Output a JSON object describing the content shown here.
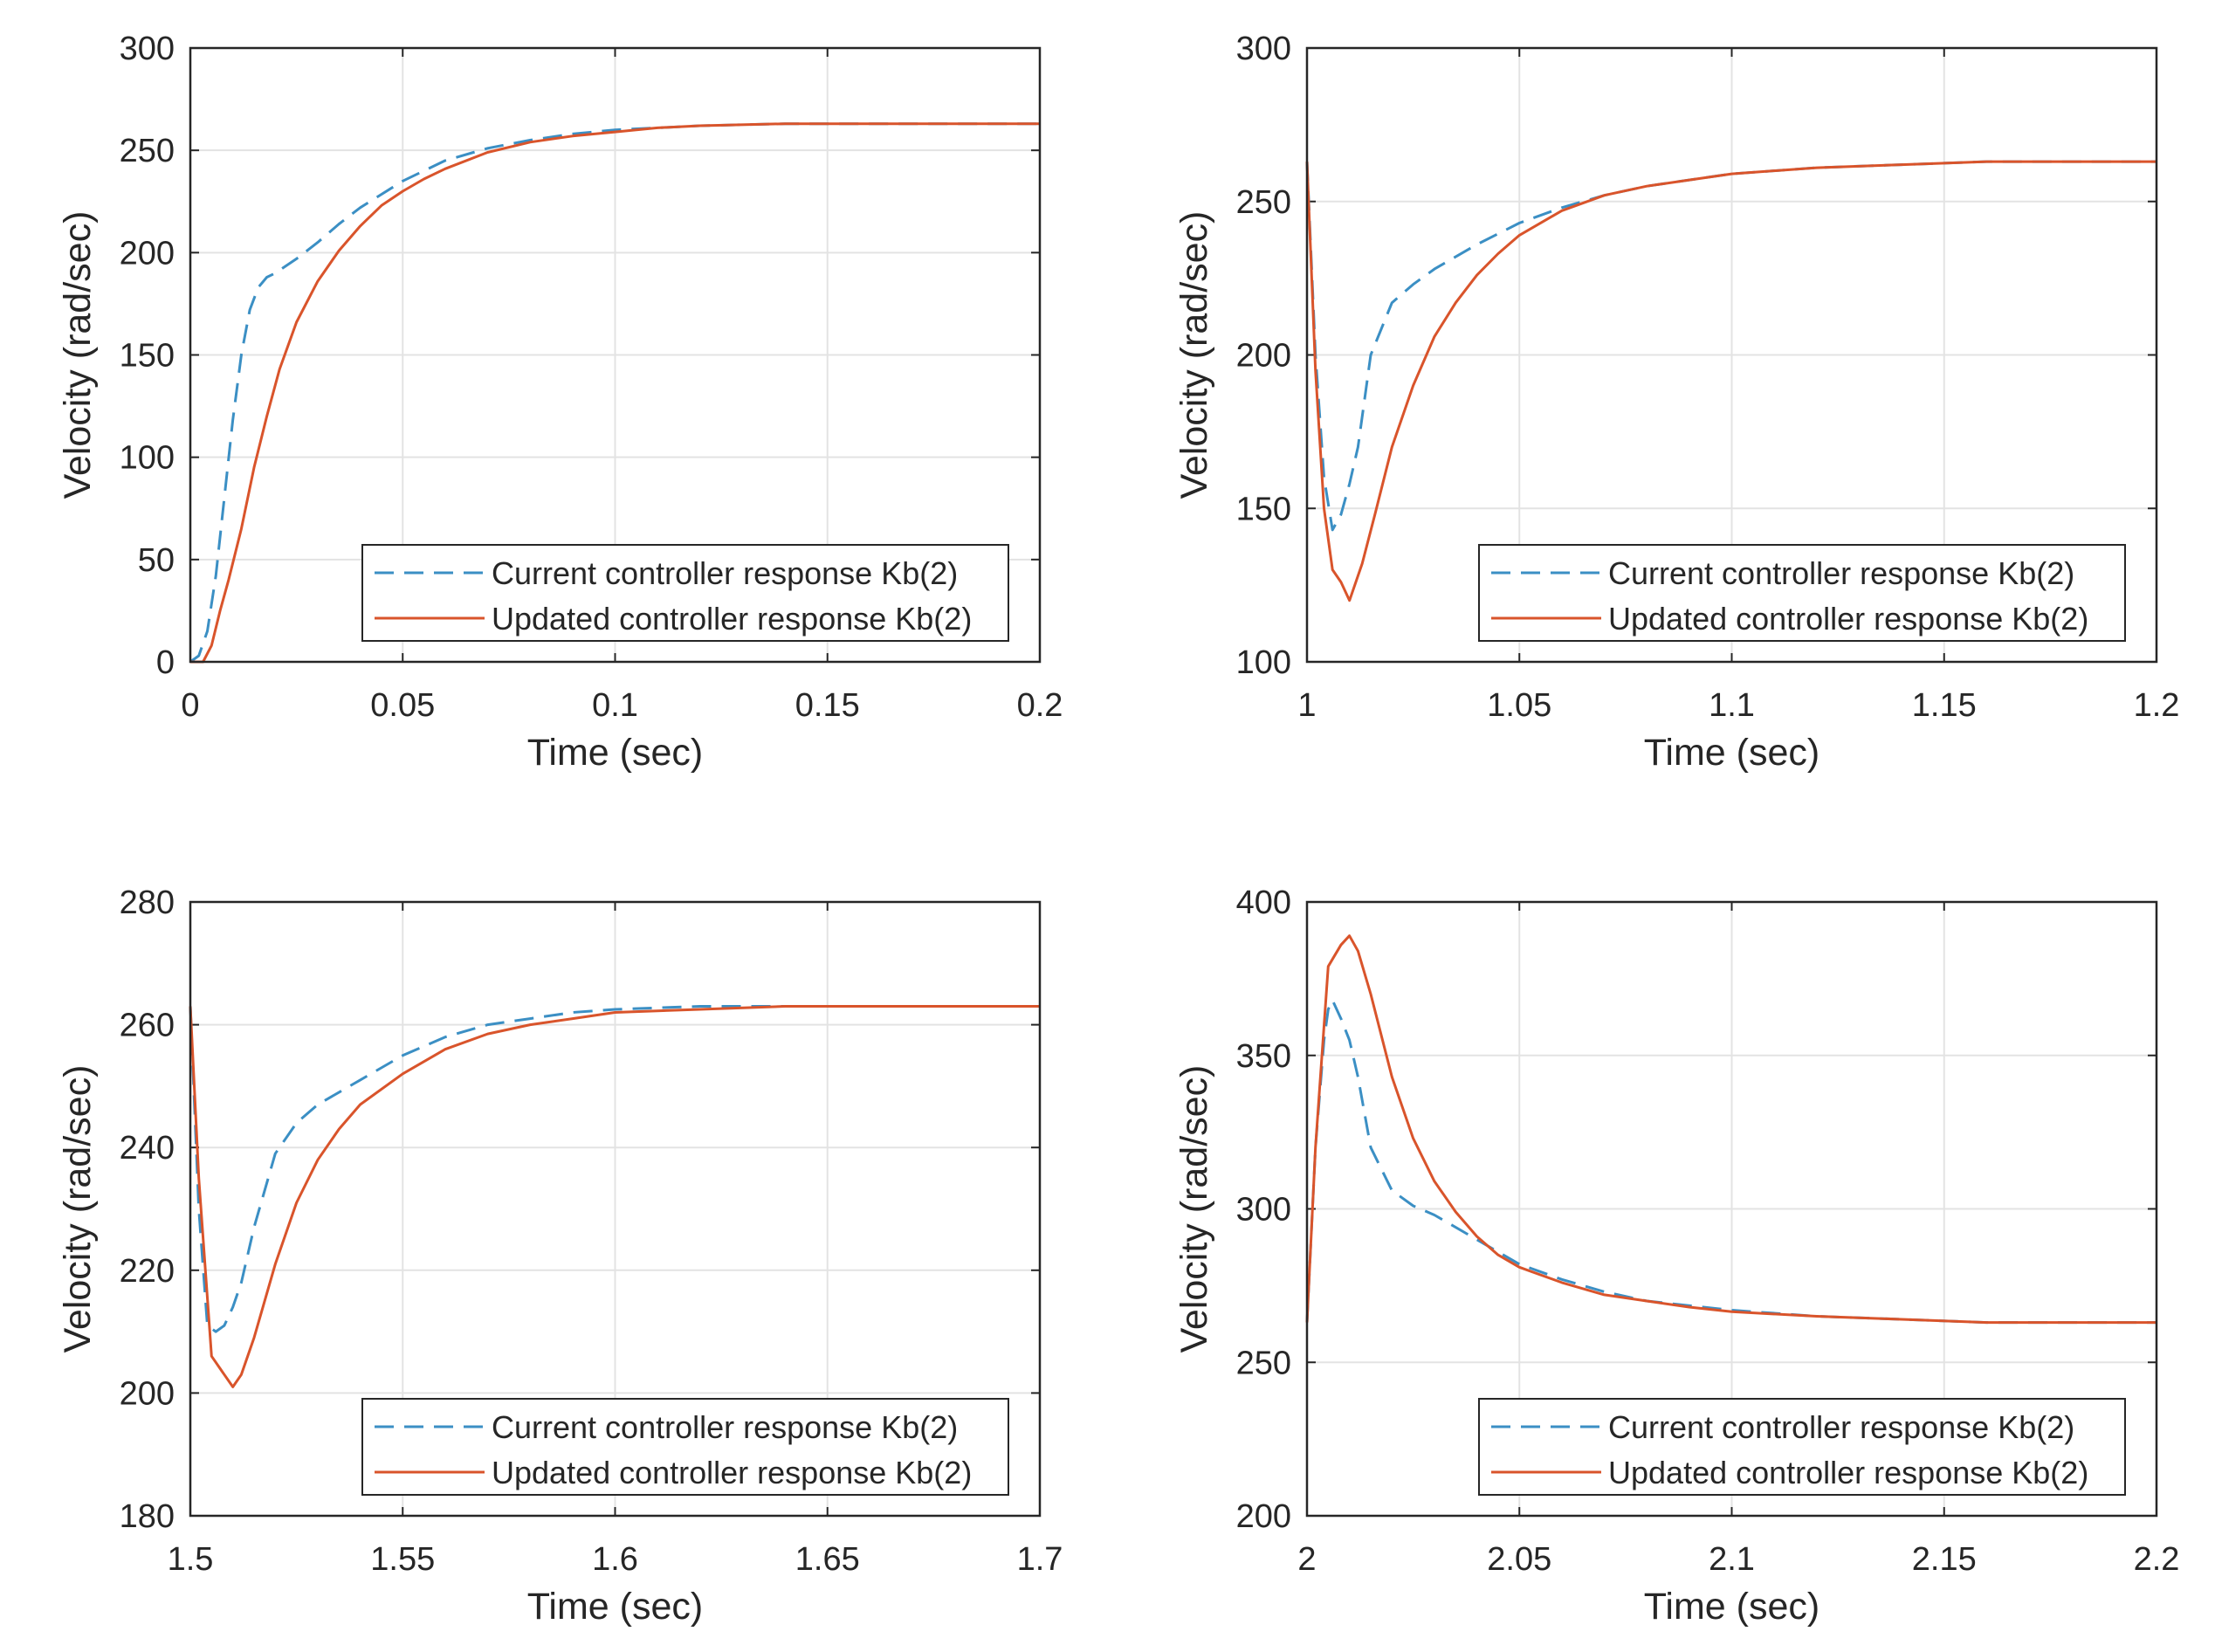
{
  "colors": {
    "current": "#3b8fc4",
    "updated": "#d9542b",
    "axes": "#262626",
    "grid": "#e3e3e3",
    "background": "#ffffff"
  },
  "chart_data": [
    {
      "type": "line",
      "xlabel": "Time (sec)",
      "ylabel": "Velocity (rad/sec)",
      "xlim": [
        0,
        0.2
      ],
      "ylim": [
        0,
        300
      ],
      "xticks": [
        0,
        0.05,
        0.1,
        0.15,
        0.2
      ],
      "xtick_labels": [
        "0",
        "0.05",
        "0.1",
        "0.15",
        "0.2"
      ],
      "yticks": [
        0,
        50,
        100,
        150,
        200,
        250,
        300
      ],
      "ytick_labels": [
        "0",
        "50",
        "100",
        "150",
        "200",
        "250",
        "300"
      ],
      "grid": true,
      "legend_position": "bottom-right",
      "series": [
        {
          "name": "Current controller response Kb(2)",
          "style": "dashed",
          "color": "current",
          "x": [
            0,
            0.002,
            0.004,
            0.006,
            0.008,
            0.01,
            0.012,
            0.014,
            0.016,
            0.018,
            0.02,
            0.025,
            0.03,
            0.035,
            0.04,
            0.05,
            0.06,
            0.07,
            0.08,
            0.09,
            0.1,
            0.11,
            0.12,
            0.14,
            0.16,
            0.18,
            0.2
          ],
          "y": [
            0,
            3,
            15,
            42,
            80,
            118,
            150,
            172,
            183,
            188,
            190,
            197,
            205,
            214,
            222,
            235,
            245,
            251,
            255,
            258,
            260,
            261,
            262,
            263,
            263,
            263,
            263
          ]
        },
        {
          "name": "Updated controller response Kb(2)",
          "style": "solid",
          "color": "updated",
          "x": [
            0,
            0.003,
            0.005,
            0.007,
            0.009,
            0.012,
            0.015,
            0.018,
            0.021,
            0.025,
            0.03,
            0.035,
            0.04,
            0.045,
            0.05,
            0.055,
            0.06,
            0.07,
            0.08,
            0.09,
            0.1,
            0.11,
            0.12,
            0.14,
            0.16,
            0.18,
            0.2
          ],
          "y": [
            0,
            0,
            8,
            25,
            40,
            65,
            95,
            120,
            143,
            166,
            186,
            201,
            213,
            223,
            230,
            236,
            241,
            249,
            254,
            257,
            259,
            261,
            262,
            263,
            263,
            263,
            263
          ]
        }
      ]
    },
    {
      "type": "line",
      "xlabel": "Time (sec)",
      "ylabel": "Velocity (rad/sec)",
      "xlim": [
        1,
        1.2
      ],
      "ylim": [
        100,
        300
      ],
      "xticks": [
        1,
        1.05,
        1.1,
        1.15,
        1.2
      ],
      "xtick_labels": [
        "1",
        "1.05",
        "1.1",
        "1.15",
        "1.2"
      ],
      "yticks": [
        100,
        150,
        200,
        250,
        300
      ],
      "ytick_labels": [
        "100",
        "150",
        "200",
        "250",
        "300"
      ],
      "grid": true,
      "legend_position": "bottom-right",
      "series": [
        {
          "name": "Current controller response Kb(2)",
          "style": "dashed",
          "color": "current",
          "x": [
            1,
            1.002,
            1.004,
            1.006,
            1.008,
            1.01,
            1.012,
            1.015,
            1.02,
            1.025,
            1.03,
            1.04,
            1.05,
            1.06,
            1.07,
            1.08,
            1.09,
            1.1,
            1.12,
            1.14,
            1.16,
            1.18,
            1.2
          ],
          "y": [
            263,
            200,
            160,
            143,
            148,
            158,
            170,
            200,
            217,
            223,
            228,
            236,
            243,
            248,
            252,
            255,
            257,
            259,
            261,
            262,
            263,
            263,
            263
          ]
        },
        {
          "name": "Updated controller response Kb(2)",
          "style": "solid",
          "color": "updated",
          "x": [
            1,
            1.002,
            1.004,
            1.006,
            1.008,
            1.01,
            1.013,
            1.016,
            1.02,
            1.025,
            1.03,
            1.035,
            1.04,
            1.045,
            1.05,
            1.06,
            1.07,
            1.08,
            1.09,
            1.1,
            1.12,
            1.14,
            1.16,
            1.18,
            1.2
          ],
          "y": [
            263,
            195,
            150,
            130,
            126,
            120,
            132,
            148,
            170,
            190,
            206,
            217,
            226,
            233,
            239,
            247,
            252,
            255,
            257,
            259,
            261,
            262,
            263,
            263,
            263
          ]
        }
      ]
    },
    {
      "type": "line",
      "xlabel": "Time (sec)",
      "ylabel": "Velocity (rad/sec)",
      "xlim": [
        1.5,
        1.7
      ],
      "ylim": [
        180,
        280
      ],
      "xticks": [
        1.5,
        1.55,
        1.6,
        1.65,
        1.7
      ],
      "xtick_labels": [
        "1.5",
        "1.55",
        "1.6",
        "1.65",
        "1.7"
      ],
      "yticks": [
        180,
        200,
        220,
        240,
        260,
        280
      ],
      "ytick_labels": [
        "180",
        "200",
        "220",
        "240",
        "260",
        "280"
      ],
      "grid": true,
      "legend_position": "bottom-right",
      "series": [
        {
          "name": "Current controller response Kb(2)",
          "style": "dashed",
          "color": "current",
          "x": [
            1.5,
            1.502,
            1.504,
            1.506,
            1.508,
            1.51,
            1.512,
            1.515,
            1.52,
            1.525,
            1.53,
            1.54,
            1.55,
            1.56,
            1.57,
            1.58,
            1.59,
            1.6,
            1.62,
            1.64,
            1.66,
            1.68,
            1.7
          ],
          "y": [
            263,
            230,
            211,
            210,
            211,
            214,
            218,
            227,
            239,
            244,
            247,
            251,
            255,
            258,
            260,
            261,
            262,
            262.5,
            263,
            263,
            263,
            263,
            263
          ]
        },
        {
          "name": "Updated controller response Kb(2)",
          "style": "solid",
          "color": "updated",
          "x": [
            1.5,
            1.502,
            1.505,
            1.508,
            1.51,
            1.512,
            1.515,
            1.52,
            1.525,
            1.53,
            1.535,
            1.54,
            1.55,
            1.56,
            1.57,
            1.58,
            1.59,
            1.6,
            1.62,
            1.64,
            1.66,
            1.68,
            1.7
          ],
          "y": [
            263,
            235,
            206,
            203,
            201,
            203,
            209,
            221,
            231,
            238,
            243,
            247,
            252,
            256,
            258.5,
            260,
            261,
            262,
            262.5,
            263,
            263,
            263,
            263
          ]
        }
      ]
    },
    {
      "type": "line",
      "xlabel": "Time (sec)",
      "ylabel": "Velocity (rad/sec)",
      "xlim": [
        2,
        2.2
      ],
      "ylim": [
        200,
        400
      ],
      "xticks": [
        2,
        2.05,
        2.1,
        2.15,
        2.2
      ],
      "xtick_labels": [
        "2",
        "2.05",
        "2.1",
        "2.15",
        "2.2"
      ],
      "yticks": [
        200,
        250,
        300,
        350,
        400
      ],
      "ytick_labels": [
        "200",
        "250",
        "300",
        "350",
        "400"
      ],
      "grid": true,
      "legend_position": "bottom-right",
      "series": [
        {
          "name": "Current controller response Kb(2)",
          "style": "dashed",
          "color": "current",
          "x": [
            2,
            2.002,
            2.004,
            2.005,
            2.006,
            2.008,
            2.01,
            2.012,
            2.015,
            2.02,
            2.025,
            2.03,
            2.04,
            2.05,
            2.06,
            2.07,
            2.08,
            2.1,
            2.12,
            2.14,
            2.16,
            2.18,
            2.2
          ],
          "y": [
            263,
            320,
            355,
            365,
            368,
            362,
            355,
            343,
            320,
            306,
            301,
            298,
            290,
            282,
            277,
            273,
            270,
            267,
            265,
            264,
            263,
            263,
            263
          ]
        },
        {
          "name": "Updated controller response Kb(2)",
          "style": "solid",
          "color": "updated",
          "x": [
            2,
            2.002,
            2.005,
            2.008,
            2.01,
            2.012,
            2.015,
            2.02,
            2.025,
            2.03,
            2.035,
            2.04,
            2.045,
            2.05,
            2.06,
            2.07,
            2.08,
            2.09,
            2.1,
            2.12,
            2.14,
            2.16,
            2.18,
            2.2
          ],
          "y": [
            263,
            320,
            379,
            386,
            389,
            384,
            370,
            343,
            323,
            309,
            299,
            291,
            285,
            281,
            276,
            272,
            270,
            268,
            266.5,
            265,
            264,
            263,
            263,
            263
          ]
        }
      ]
    }
  ]
}
